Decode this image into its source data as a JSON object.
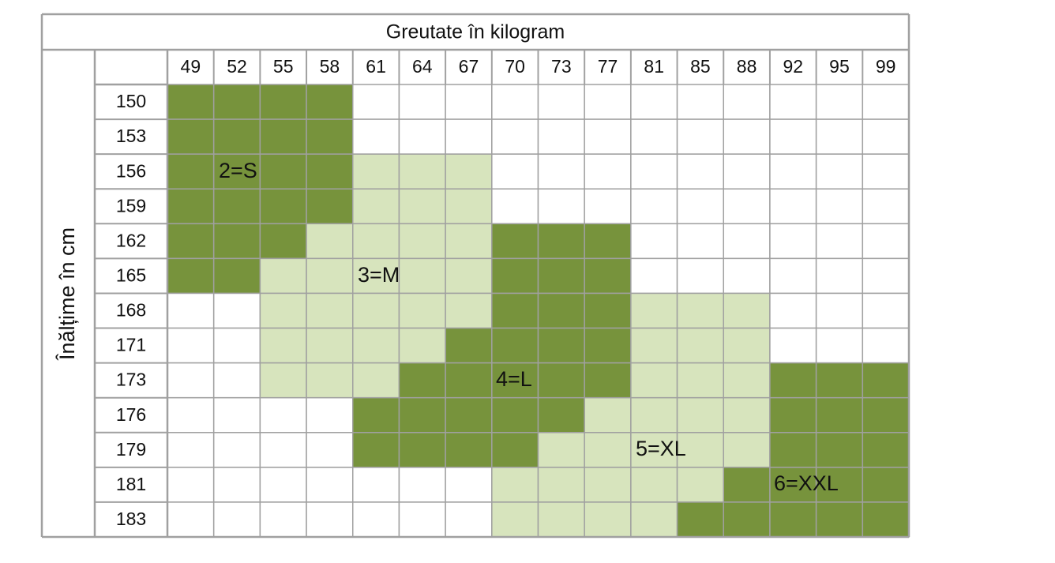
{
  "title": "Greutate în kilogram",
  "row_header": "Înălțime în cm",
  "weights": [
    49,
    52,
    55,
    58,
    61,
    64,
    67,
    70,
    73,
    77,
    81,
    85,
    88,
    92,
    95,
    99
  ],
  "zones": [
    {
      "label": "2=S",
      "size": 2,
      "color": "#77933c"
    },
    {
      "label": "3=M",
      "size": 3,
      "color": "#d7e4bd"
    },
    {
      "label": "4=L",
      "size": 4,
      "color": "#77933c"
    },
    {
      "label": "5=XL",
      "size": 5,
      "color": "#d7e4bd"
    },
    {
      "label": "6=XXL",
      "size": 6,
      "color": "#77933c"
    }
  ],
  "rows": [
    {
      "height": 150,
      "sizes": [
        2,
        2,
        2,
        2,
        null,
        null,
        null,
        null,
        null,
        null,
        null,
        null,
        null,
        null,
        null,
        null
      ]
    },
    {
      "height": 153,
      "sizes": [
        2,
        2,
        2,
        2,
        null,
        null,
        null,
        null,
        null,
        null,
        null,
        null,
        null,
        null,
        null,
        null
      ]
    },
    {
      "height": 156,
      "sizes": [
        2,
        2,
        2,
        2,
        3,
        3,
        3,
        null,
        null,
        null,
        null,
        null,
        null,
        null,
        null,
        null
      ]
    },
    {
      "height": 159,
      "sizes": [
        2,
        2,
        2,
        2,
        3,
        3,
        3,
        null,
        null,
        null,
        null,
        null,
        null,
        null,
        null,
        null
      ]
    },
    {
      "height": 162,
      "sizes": [
        2,
        2,
        2,
        3,
        3,
        3,
        3,
        4,
        4,
        4,
        null,
        null,
        null,
        null,
        null,
        null
      ]
    },
    {
      "height": 165,
      "sizes": [
        2,
        2,
        3,
        3,
        3,
        3,
        3,
        4,
        4,
        4,
        null,
        null,
        null,
        null,
        null,
        null
      ]
    },
    {
      "height": 168,
      "sizes": [
        null,
        null,
        3,
        3,
        3,
        3,
        3,
        4,
        4,
        4,
        5,
        5,
        5,
        null,
        null,
        null
      ]
    },
    {
      "height": 171,
      "sizes": [
        null,
        null,
        3,
        3,
        3,
        3,
        4,
        4,
        4,
        4,
        5,
        5,
        5,
        null,
        null,
        null
      ]
    },
    {
      "height": 173,
      "sizes": [
        null,
        null,
        3,
        3,
        3,
        4,
        4,
        4,
        4,
        4,
        5,
        5,
        5,
        6,
        6,
        6
      ]
    },
    {
      "height": 176,
      "sizes": [
        null,
        null,
        null,
        null,
        4,
        4,
        4,
        4,
        4,
        5,
        5,
        5,
        5,
        6,
        6,
        6
      ]
    },
    {
      "height": 179,
      "sizes": [
        null,
        null,
        null,
        null,
        4,
        4,
        4,
        4,
        5,
        5,
        5,
        5,
        5,
        6,
        6,
        6
      ]
    },
    {
      "height": 181,
      "sizes": [
        null,
        null,
        null,
        null,
        null,
        null,
        null,
        5,
        5,
        5,
        5,
        5,
        6,
        6,
        6,
        6
      ]
    },
    {
      "height": 183,
      "sizes": [
        null,
        null,
        null,
        null,
        null,
        null,
        null,
        5,
        5,
        5,
        5,
        6,
        6,
        6,
        6,
        6
      ]
    }
  ]
}
